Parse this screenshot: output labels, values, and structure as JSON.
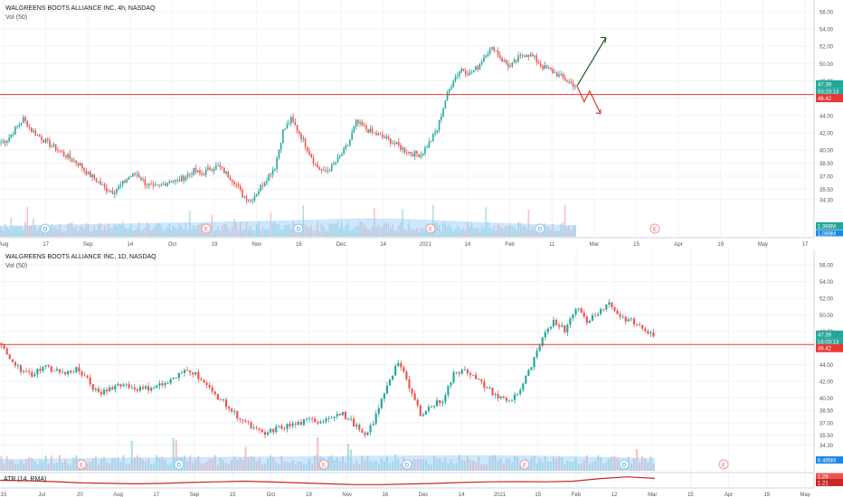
{
  "colors": {
    "up": "#26a69a",
    "down": "#ef5350",
    "support": "#e53935",
    "volume_band": "#90caf9",
    "atr": "#c62828",
    "grid": "#f0f3fa"
  },
  "pane_top": {
    "legend_title": "WALGREENS BOOTS ALLIANCE INC, 4h, NASDAQ",
    "legend_vol": "Vol (50)",
    "price_tags": {
      "last": "47.39",
      "countdown": "03:23:13",
      "level": "46.42",
      "volume": "1.366M",
      "volume_avg": "1.089M"
    },
    "support_level": 46.42,
    "last_price": 47.39,
    "ylim": [
      32.5,
      56.5
    ],
    "y_ticks": [
      56.0,
      54.0,
      52.0,
      50.0,
      48.0,
      46.0,
      44.0,
      42.0,
      40.0,
      38.5,
      37.0,
      35.5,
      34.3
    ],
    "x_ticks": [
      "Aug",
      "17",
      "Sep",
      "14",
      "Oct",
      "19",
      "Nov",
      "16",
      "Dec",
      "14",
      "2021",
      "14",
      "Feb",
      "11",
      "Mar",
      "15",
      "Apr",
      "19",
      "May",
      "17"
    ],
    "event_markers": [
      "D",
      "E",
      "D",
      "E",
      "D",
      "E"
    ],
    "projection": {
      "up_target": 53.0,
      "down_target": 44.2
    }
  },
  "pane_bottom": {
    "legend_title": "WALGREENS BOOTS ALLIANCE INC, 1D, NASDAQ",
    "legend_vol": "Vol (50)",
    "price_tags": {
      "last": "47.39",
      "countdown": "16:03:13",
      "level": "46.42",
      "volume": "6.495M"
    },
    "support_level": 46.42,
    "last_price": 47.39,
    "ylim": [
      33.5,
      57.0
    ],
    "y_ticks": [
      56.0,
      54.0,
      52.0,
      50.0,
      48.0,
      46.0,
      44.0,
      42.0,
      40.0,
      38.5,
      37.0,
      35.5,
      34.3
    ],
    "x_ticks": [
      "15",
      "Jul",
      "20",
      "Aug",
      "17",
      "Sep",
      "15",
      "Oct",
      "19",
      "Nov",
      "16",
      "Dec",
      "14",
      "2021",
      "15",
      "Feb",
      "12",
      "Mar",
      "15",
      "Apr",
      "19",
      "May"
    ],
    "event_markers": [
      "E",
      "D",
      "E",
      "D",
      "E",
      "D",
      "E"
    ],
    "atr_label": "ATR (14, RMA)",
    "atr_tags": {
      "value": "1.21",
      "prev": "1.28"
    }
  },
  "chart_data": [
    {
      "type": "candlestick",
      "title": "WALGREENS BOOTS ALLIANCE INC, 4h, NASDAQ",
      "ylim": [
        32.5,
        56.5
      ],
      "close_path": [
        40.8,
        41.2,
        42.4,
        43.6,
        42.3,
        41.6,
        40.8,
        40.2,
        39.5,
        38.9,
        38.3,
        37.2,
        36.6,
        35.6,
        35.2,
        35.9,
        36.9,
        37.3,
        36.2,
        35.6,
        35.9,
        36.5,
        36.4,
        37.0,
        37.6,
        37.2,
        37.9,
        38.1,
        37.3,
        36.4,
        34.8,
        34.2,
        35.4,
        36.8,
        38.1,
        42.2,
        43.5,
        42.0,
        40.2,
        38.3,
        37.4,
        38.0,
        39.2,
        40.6,
        43.2,
        42.6,
        42.0,
        41.6,
        41.2,
        40.6,
        40.0,
        39.6,
        39.5,
        40.8,
        42.4,
        45.8,
        48.2,
        49.4,
        48.8,
        49.6,
        51.2,
        51.8,
        50.4,
        49.6,
        50.6,
        51.2,
        50.6,
        49.6,
        49.2,
        48.6,
        48.0,
        47.39
      ],
      "volume_avg_level": 0.5
    },
    {
      "type": "candlestick",
      "title": "WALGREENS BOOTS ALLIANCE INC, 1D, NASDAQ",
      "ylim": [
        33.5,
        57.0
      ],
      "close_path": [
        46.6,
        45.0,
        43.2,
        42.8,
        43.8,
        43.4,
        42.9,
        43.5,
        42.1,
        40.4,
        41.2,
        41.7,
        41.3,
        41.0,
        41.4,
        41.7,
        42.4,
        43.6,
        42.6,
        41.0,
        39.8,
        38.4,
        37.3,
        36.2,
        35.6,
        36.3,
        36.6,
        36.9,
        37.3,
        37.2,
        37.9,
        38.0,
        36.9,
        35.2,
        37.8,
        41.6,
        44.4,
        41.2,
        38.1,
        39.0,
        39.8,
        42.8,
        43.6,
        42.2,
        41.2,
        40.1,
        39.6,
        41.0,
        43.8,
        47.0,
        49.4,
        48.2,
        51.0,
        49.2,
        50.4,
        51.4,
        49.8,
        49.2,
        48.4,
        47.39
      ],
      "atr_path": [
        1.12,
        1.1,
        1.06,
        1.0,
        0.98,
        0.96,
        0.98,
        1.02,
        1.05,
        1.08,
        1.04,
        1.0,
        0.96,
        0.92,
        0.92,
        0.95,
        0.98,
        1.02,
        1.05,
        1.06,
        1.05,
        1.08,
        1.2,
        1.28,
        1.21
      ]
    }
  ]
}
